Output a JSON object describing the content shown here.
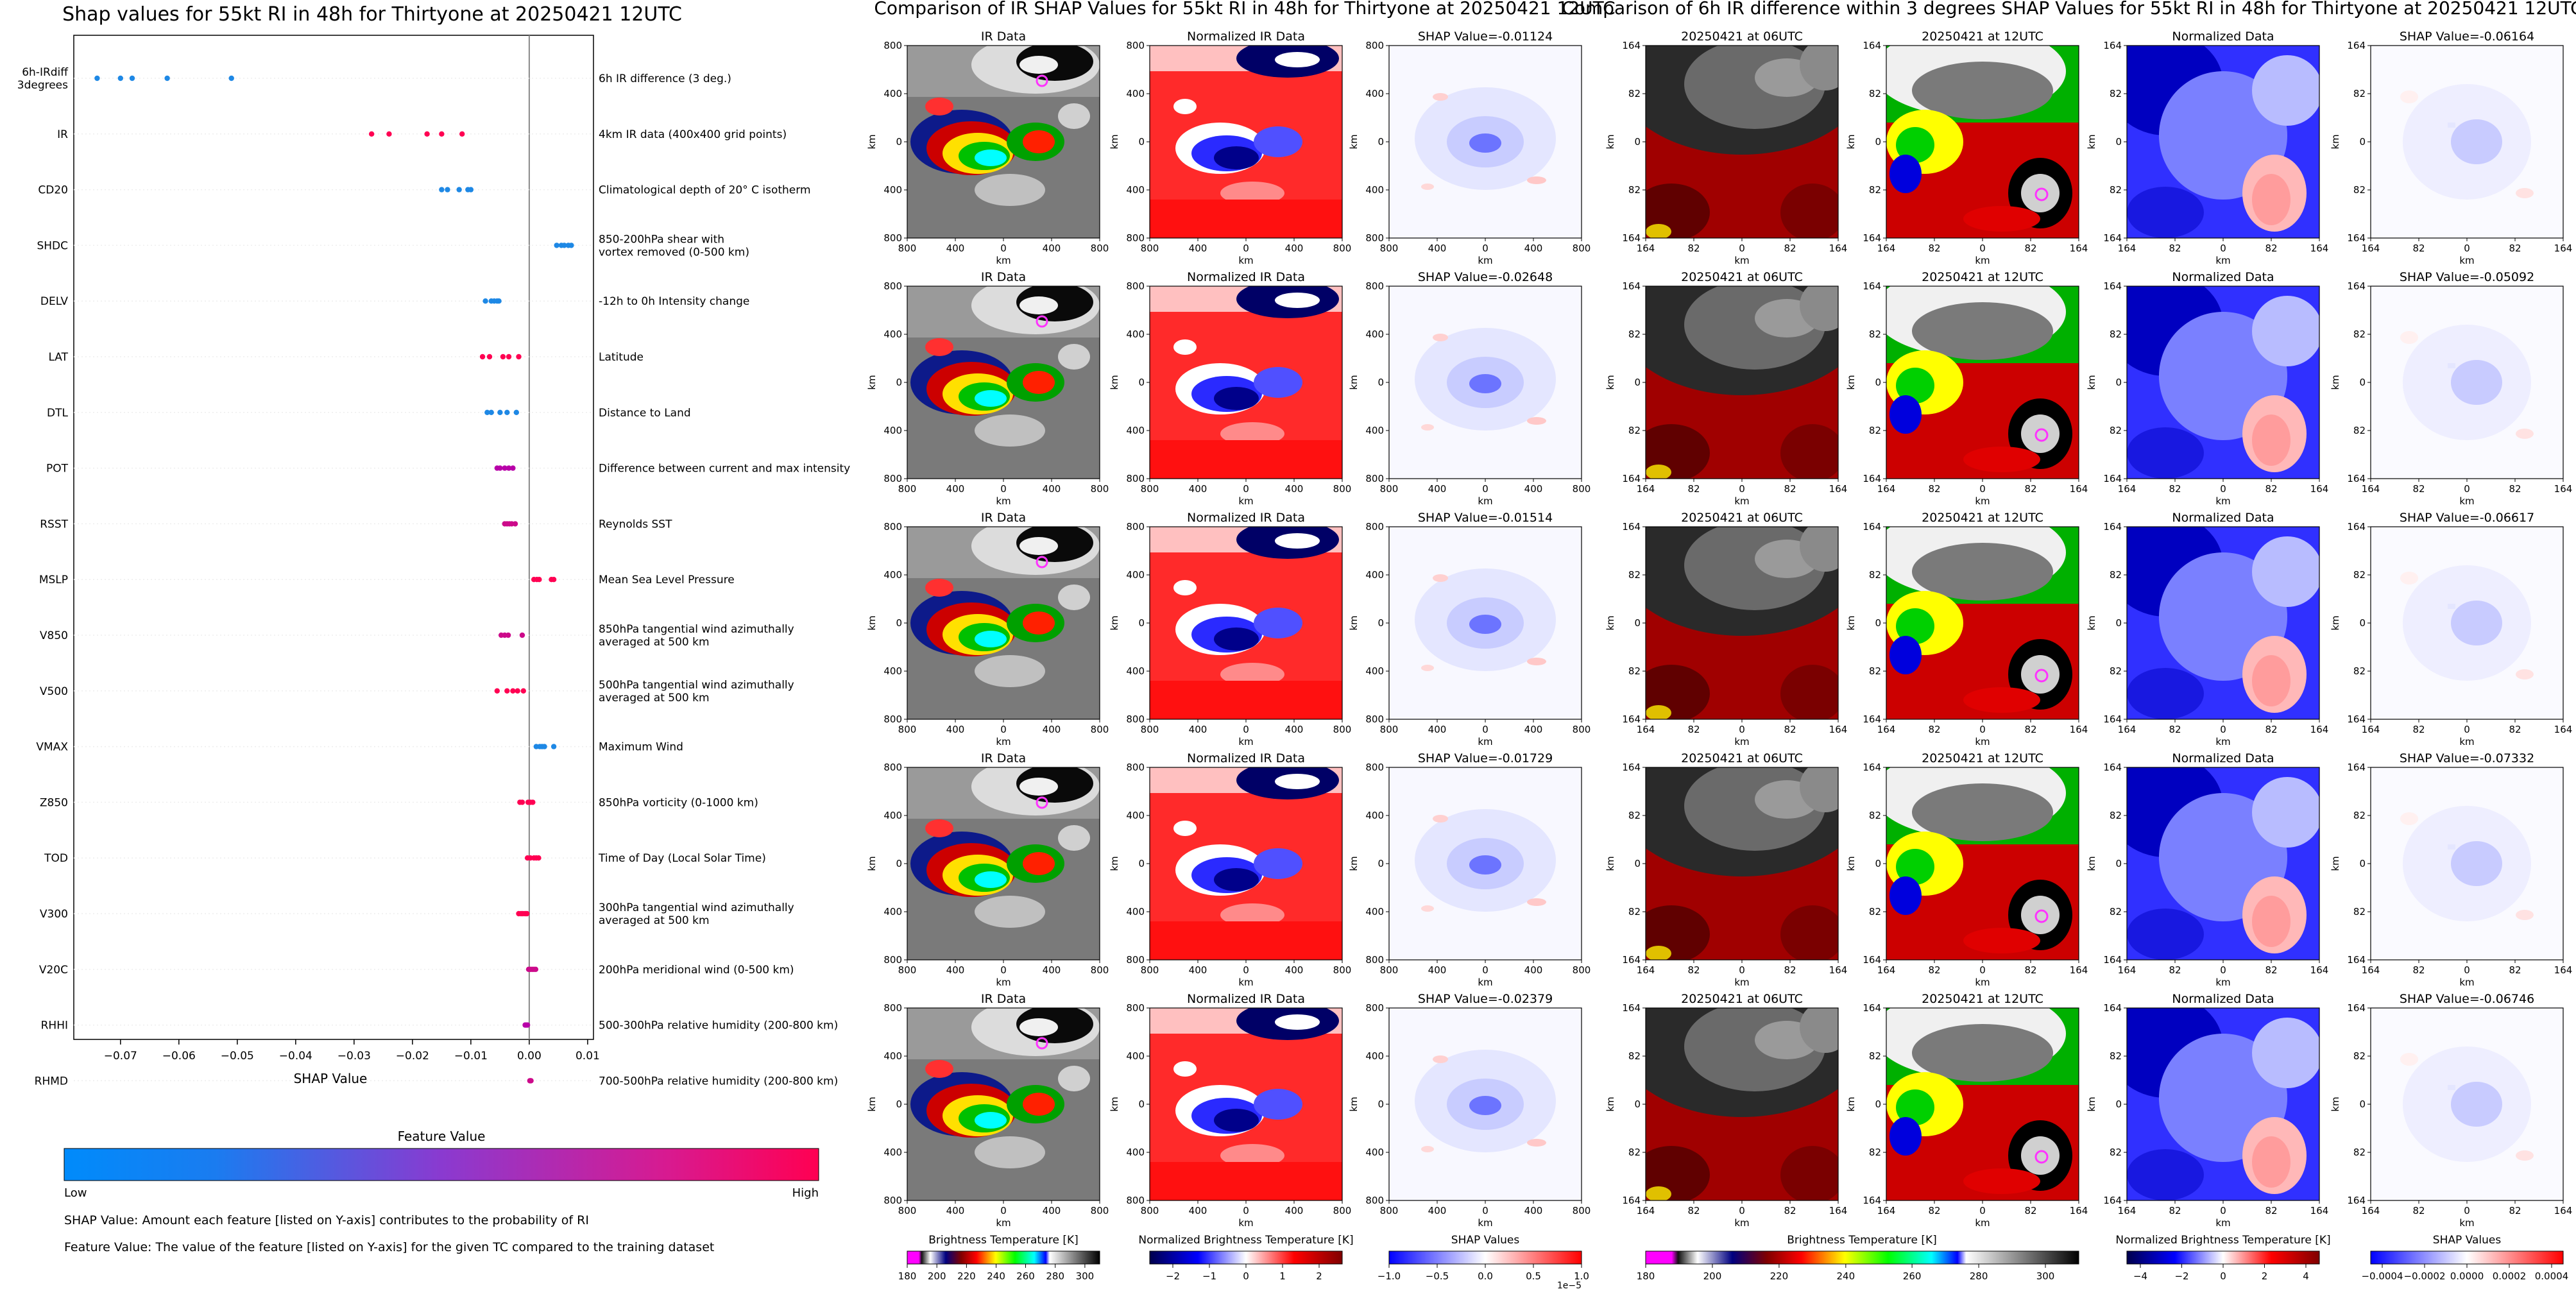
{
  "shap_panel": {
    "title": "Shap values for 55kt RI in 48h for Thirtyone at 20250421 12UTC",
    "xlabel": "SHAP Value",
    "xticks": [
      "−0.07",
      "−0.06",
      "−0.05",
      "−0.04",
      "−0.03",
      "−0.02",
      "−0.01",
      "0.00",
      "0.01"
    ],
    "colorbar_title": "Feature Value",
    "colorbar_low": "Low",
    "colorbar_high": "High",
    "footnote_1": "SHAP Value: Amount each feature [listed on Y-axis] contributes to the probability of RI",
    "footnote_2": "Feature Value: The value of the feature [listed on Y-axis] for the given TC compared to the training dataset"
  },
  "chart_data": [
    {
      "type": "scatter",
      "title": "Shap values for 55kt RI in 48h for Thirtyone at 20250421 12UTC",
      "xlabel": "SHAP Value",
      "xlim": [
        -0.078,
        0.011
      ],
      "features": [
        {
          "name": "6h-IRdiff\n3degrees",
          "description": "6h IR difference (3 deg.)",
          "values": [
            -0.074,
            -0.07,
            -0.068,
            -0.062,
            -0.051
          ],
          "color": "#1e88e5"
        },
        {
          "name": "IR",
          "description": "4km IR data (400x400 grid points)",
          "values": [
            -0.027,
            -0.024,
            -0.0175,
            -0.015,
            -0.0115
          ],
          "color": "#ff0052"
        },
        {
          "name": "CD20",
          "description": "Climatological depth of 20° C isotherm",
          "values": [
            -0.015,
            -0.014,
            -0.012,
            -0.0105,
            -0.01
          ],
          "color": "#1e88e5"
        },
        {
          "name": "SHDC",
          "description": "850-200hPa shear with\nvortex removed (0-500 km)",
          "values": [
            0.0047,
            0.0055,
            0.006,
            0.0067,
            0.0072
          ],
          "color": "#1e88e5"
        },
        {
          "name": "DELV",
          "description": "-12h to 0h Intensity change",
          "values": [
            -0.0075,
            -0.0065,
            -0.006,
            -0.0055,
            -0.0052
          ],
          "color": "#1e88e5"
        },
        {
          "name": "LAT",
          "description": "Latitude",
          "values": [
            -0.008,
            -0.0068,
            -0.0045,
            -0.0035,
            -0.0018
          ],
          "color": "#ff0052"
        },
        {
          "name": "DTL",
          "description": "Distance to Land",
          "values": [
            -0.0072,
            -0.0065,
            -0.005,
            -0.0038,
            -0.0022
          ],
          "color": "#1e88e5"
        },
        {
          "name": "POT",
          "description": "Difference between current and max intensity",
          "values": [
            -0.0055,
            -0.005,
            -0.0042,
            -0.0035,
            -0.0028
          ],
          "color": "#b800a8"
        },
        {
          "name": "RSST",
          "description": "Reynolds SST",
          "values": [
            -0.0042,
            -0.0038,
            -0.0034,
            -0.003,
            -0.0024
          ],
          "color": "#cc0a8a"
        },
        {
          "name": "MSLP",
          "description": "Mean Sea Level Pressure",
          "values": [
            0.0008,
            0.0013,
            0.0017,
            0.0038,
            0.0042
          ],
          "color": "#ff0052"
        },
        {
          "name": "V850",
          "description": "850hPa tangential wind azimuthally\naveraged at 500 km",
          "values": [
            -0.0048,
            -0.0042,
            -0.0036,
            -0.0012
          ],
          "color": "#cc0a8a"
        },
        {
          "name": "V500",
          "description": "500hPa tangential wind azimuthally\naveraged at 500 km",
          "values": [
            -0.0055,
            -0.0038,
            -0.0028,
            -0.002,
            -0.001
          ],
          "color": "#ff0052"
        },
        {
          "name": "VMAX",
          "description": "Maximum Wind",
          "values": [
            0.0012,
            0.0018,
            0.0022,
            0.0026,
            0.0042
          ],
          "color": "#1e88e5"
        },
        {
          "name": "Z850",
          "description": "850hPa vorticity (0-1000 km)",
          "values": [
            -0.0016,
            -0.0012,
            -0.0002,
            0.0002,
            0.0006
          ],
          "color": "#ff0052"
        },
        {
          "name": "TOD",
          "description": "Time of Day (Local Solar Time)",
          "values": [
            -0.0003,
            0.0002,
            0.0008,
            0.0012,
            0.0016
          ],
          "color": "#ff0052"
        },
        {
          "name": "V300",
          "description": "300hPa tangential wind azimuthally\naveraged at 500 km",
          "values": [
            -0.0018,
            -0.0014,
            -0.0011,
            -0.0007,
            -0.0004
          ],
          "color": "#ff0052"
        },
        {
          "name": "V20C",
          "description": "200hPa meridional wind (0-500 km)",
          "values": [
            -0.0001,
            0.0002,
            0.0005,
            0.0008,
            0.0011
          ],
          "color": "#cc0a8a"
        },
        {
          "name": "RHHI",
          "description": "500-300hPa relative humidity (200-800 km)",
          "values": [
            -0.0007,
            -0.0005,
            -0.0003
          ],
          "color": "#b800a8"
        },
        {
          "name": "RHMD",
          "description": "700-500hPa relative humidity (200-800 km)",
          "values": [
            0.0001,
            0.0002,
            0.0003
          ],
          "color": "#cc0a8a"
        }
      ]
    },
    {
      "type": "heatmap",
      "title": "Comparison of IR SHAP Values for 55kt RI in 48h for Thirtyone at 20250421 12UTC",
      "columns": [
        "IR Data",
        "Normalized IR Data",
        "SHAP Value"
      ],
      "shap_values": [
        "-0.01124",
        "-0.02648",
        "-0.01514",
        "-0.01729",
        "-0.02379"
      ],
      "xlabel": "km",
      "ylabel": "km",
      "tick_labels": [
        "800",
        "400",
        "0",
        "400",
        "800"
      ]
    },
    {
      "type": "heatmap",
      "title": "Comparison of 6h IR difference within 3 degrees SHAP Values for 55kt RI in 48h for Thirtyone at 20250421 12UTC",
      "columns": [
        "20250421 at 06UTC",
        "20250421 at 12UTC",
        "Normalized Data",
        "SHAP Value"
      ],
      "shap_values": [
        "-0.06164",
        "-0.05092",
        "-0.06617",
        "-0.07332",
        "-0.06746"
      ],
      "xlabel": "km",
      "ylabel": "km",
      "tick_labels": [
        "164",
        "82",
        "0",
        "82",
        "164"
      ]
    }
  ],
  "ir_section": {
    "title": "Comparison of IR SHAP Values for 55kt RI in 48h for Thirtyone at 20250421 12UTC",
    "col_ir": "IR Data",
    "col_norm": "Normalized IR Data",
    "shap_prefix": "SHAP Value=",
    "shap_values": [
      "-0.01124",
      "-0.02648",
      "-0.01514",
      "-0.01729",
      "-0.02379"
    ],
    "axis_unit": "km",
    "ticks": [
      "800",
      "400",
      "0",
      "400",
      "800"
    ],
    "cb1": {
      "label": "Brightness Temperature [K]",
      "ticks": [
        "180",
        "200",
        "220",
        "240",
        "260",
        "280",
        "300"
      ]
    },
    "cb2": {
      "label": "Normalized Brightness Temperature [K]",
      "ticks": [
        "−2",
        "−1",
        "0",
        "1",
        "2"
      ]
    },
    "cb3": {
      "label": "SHAP Values",
      "ticks": [
        "−1.0",
        "−0.5",
        "0.0",
        "0.5",
        "1.0"
      ],
      "exponent": "1e−5"
    }
  },
  "diff_section": {
    "title": "Comparison of 6h IR difference within 3 degrees SHAP Values for 55kt RI in 48h for Thirtyone at 20250421 12UTC",
    "col_06": "20250421 at 06UTC",
    "col_12": "20250421 at 12UTC",
    "col_norm": "Normalized Data",
    "shap_prefix": "SHAP Value=",
    "shap_values": [
      "-0.06164",
      "-0.05092",
      "-0.06617",
      "-0.07332",
      "-0.06746"
    ],
    "axis_unit": "km",
    "ticks": [
      "164",
      "82",
      "0",
      "82",
      "164"
    ],
    "cb1": {
      "label": "Brightness Temperature [K]",
      "ticks": [
        "180",
        "200",
        "220",
        "240",
        "260",
        "280",
        "300"
      ]
    },
    "cb2": {
      "label": "Normalized Brightness Temperature [K]",
      "ticks": [
        "−4",
        "−2",
        "0",
        "2",
        "4"
      ]
    },
    "cb3": {
      "label": "SHAP Values",
      "ticks": [
        "−0.0004",
        "−0.0002",
        "0.0000",
        "0.0002",
        "0.0004"
      ]
    }
  },
  "colors": {
    "low": "#008bfb",
    "high": "#ff0052",
    "grid": "#eeeeee"
  }
}
